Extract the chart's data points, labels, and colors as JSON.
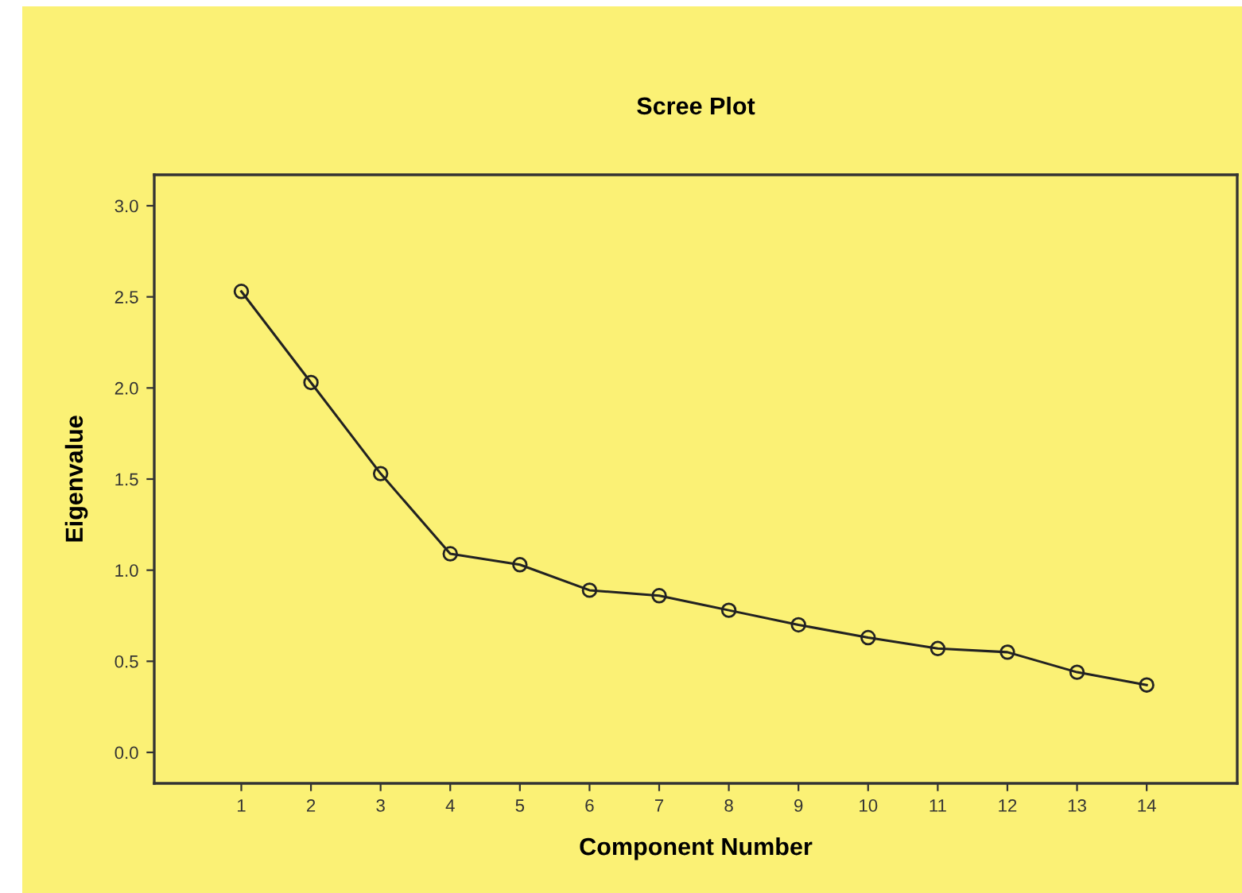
{
  "chart_data": {
    "type": "line",
    "title": "Scree Plot",
    "xlabel": "Component Number",
    "ylabel": "Eigenvalue",
    "x": [
      1,
      2,
      3,
      4,
      5,
      6,
      7,
      8,
      9,
      10,
      11,
      12,
      13,
      14
    ],
    "series": [
      {
        "color": "#222222",
        "values": [
          2.53,
          2.03,
          1.53,
          1.09,
          1.03,
          0.89,
          0.86,
          0.78,
          0.7,
          0.63,
          0.57,
          0.55,
          0.44,
          0.37
        ]
      }
    ],
    "xlim": [
      -0.25,
      15.3
    ],
    "xticks": [
      1,
      2,
      3,
      4,
      5,
      6,
      7,
      8,
      9,
      10,
      11,
      12,
      13,
      14
    ],
    "ylim": [
      -0.17,
      3.17
    ],
    "yticks": [
      {
        "value": 0,
        "label": "0.0"
      },
      {
        "value": 0.5,
        "label": "0.5"
      },
      {
        "value": 1,
        "label": "1.0"
      },
      {
        "value": 1.5,
        "label": "1.5"
      },
      {
        "value": 2,
        "label": "2.0"
      },
      {
        "value": 2.5,
        "label": "2.5"
      },
      {
        "value": 3,
        "label": "3.0"
      }
    ],
    "marker": "circle",
    "line_style": "solid",
    "grid": false,
    "legend": false
  }
}
